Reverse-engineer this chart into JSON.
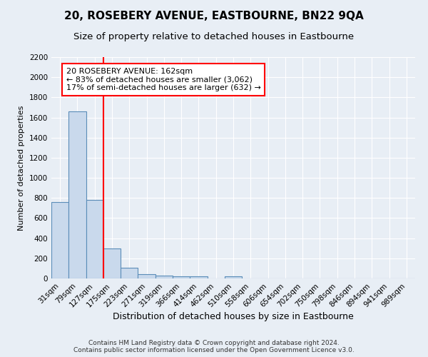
{
  "title": "20, ROSEBERY AVENUE, EASTBOURNE, BN22 9QA",
  "subtitle": "Size of property relative to detached houses in Eastbourne",
  "xlabel": "Distribution of detached houses by size in Eastbourne",
  "ylabel": "Number of detached properties",
  "categories": [
    "31sqm",
    "79sqm",
    "127sqm",
    "175sqm",
    "223sqm",
    "271sqm",
    "319sqm",
    "366sqm",
    "414sqm",
    "462sqm",
    "510sqm",
    "558sqm",
    "606sqm",
    "654sqm",
    "702sqm",
    "750sqm",
    "798sqm",
    "846sqm",
    "894sqm",
    "941sqm",
    "989sqm"
  ],
  "values": [
    760,
    1660,
    780,
    300,
    110,
    40,
    30,
    20,
    20,
    0,
    20,
    0,
    0,
    0,
    0,
    0,
    0,
    0,
    0,
    0,
    0
  ],
  "bar_color": "#c9d9ec",
  "bar_edge_color": "#5b8db8",
  "property_line_x": 2.5,
  "annotation_line1": "20 ROSEBERY AVENUE: 162sqm",
  "annotation_line2": "← 83% of detached houses are smaller (3,062)",
  "annotation_line3": "17% of semi-detached houses are larger (632) →",
  "annotation_box_color": "white",
  "annotation_box_edge_color": "red",
  "property_line_color": "red",
  "ylim": [
    0,
    2200
  ],
  "yticks": [
    0,
    200,
    400,
    600,
    800,
    1000,
    1200,
    1400,
    1600,
    1800,
    2000,
    2200
  ],
  "footer_line1": "Contains HM Land Registry data © Crown copyright and database right 2024.",
  "footer_line2": "Contains public sector information licensed under the Open Government Licence v3.0.",
  "background_color": "#e8eef5",
  "plot_bg_color": "#e8eef5",
  "grid_color": "white",
  "title_fontsize": 11,
  "subtitle_fontsize": 9.5,
  "xlabel_fontsize": 9,
  "ylabel_fontsize": 8,
  "tick_fontsize": 7.5,
  "annotation_fontsize": 8,
  "footer_fontsize": 6.5
}
